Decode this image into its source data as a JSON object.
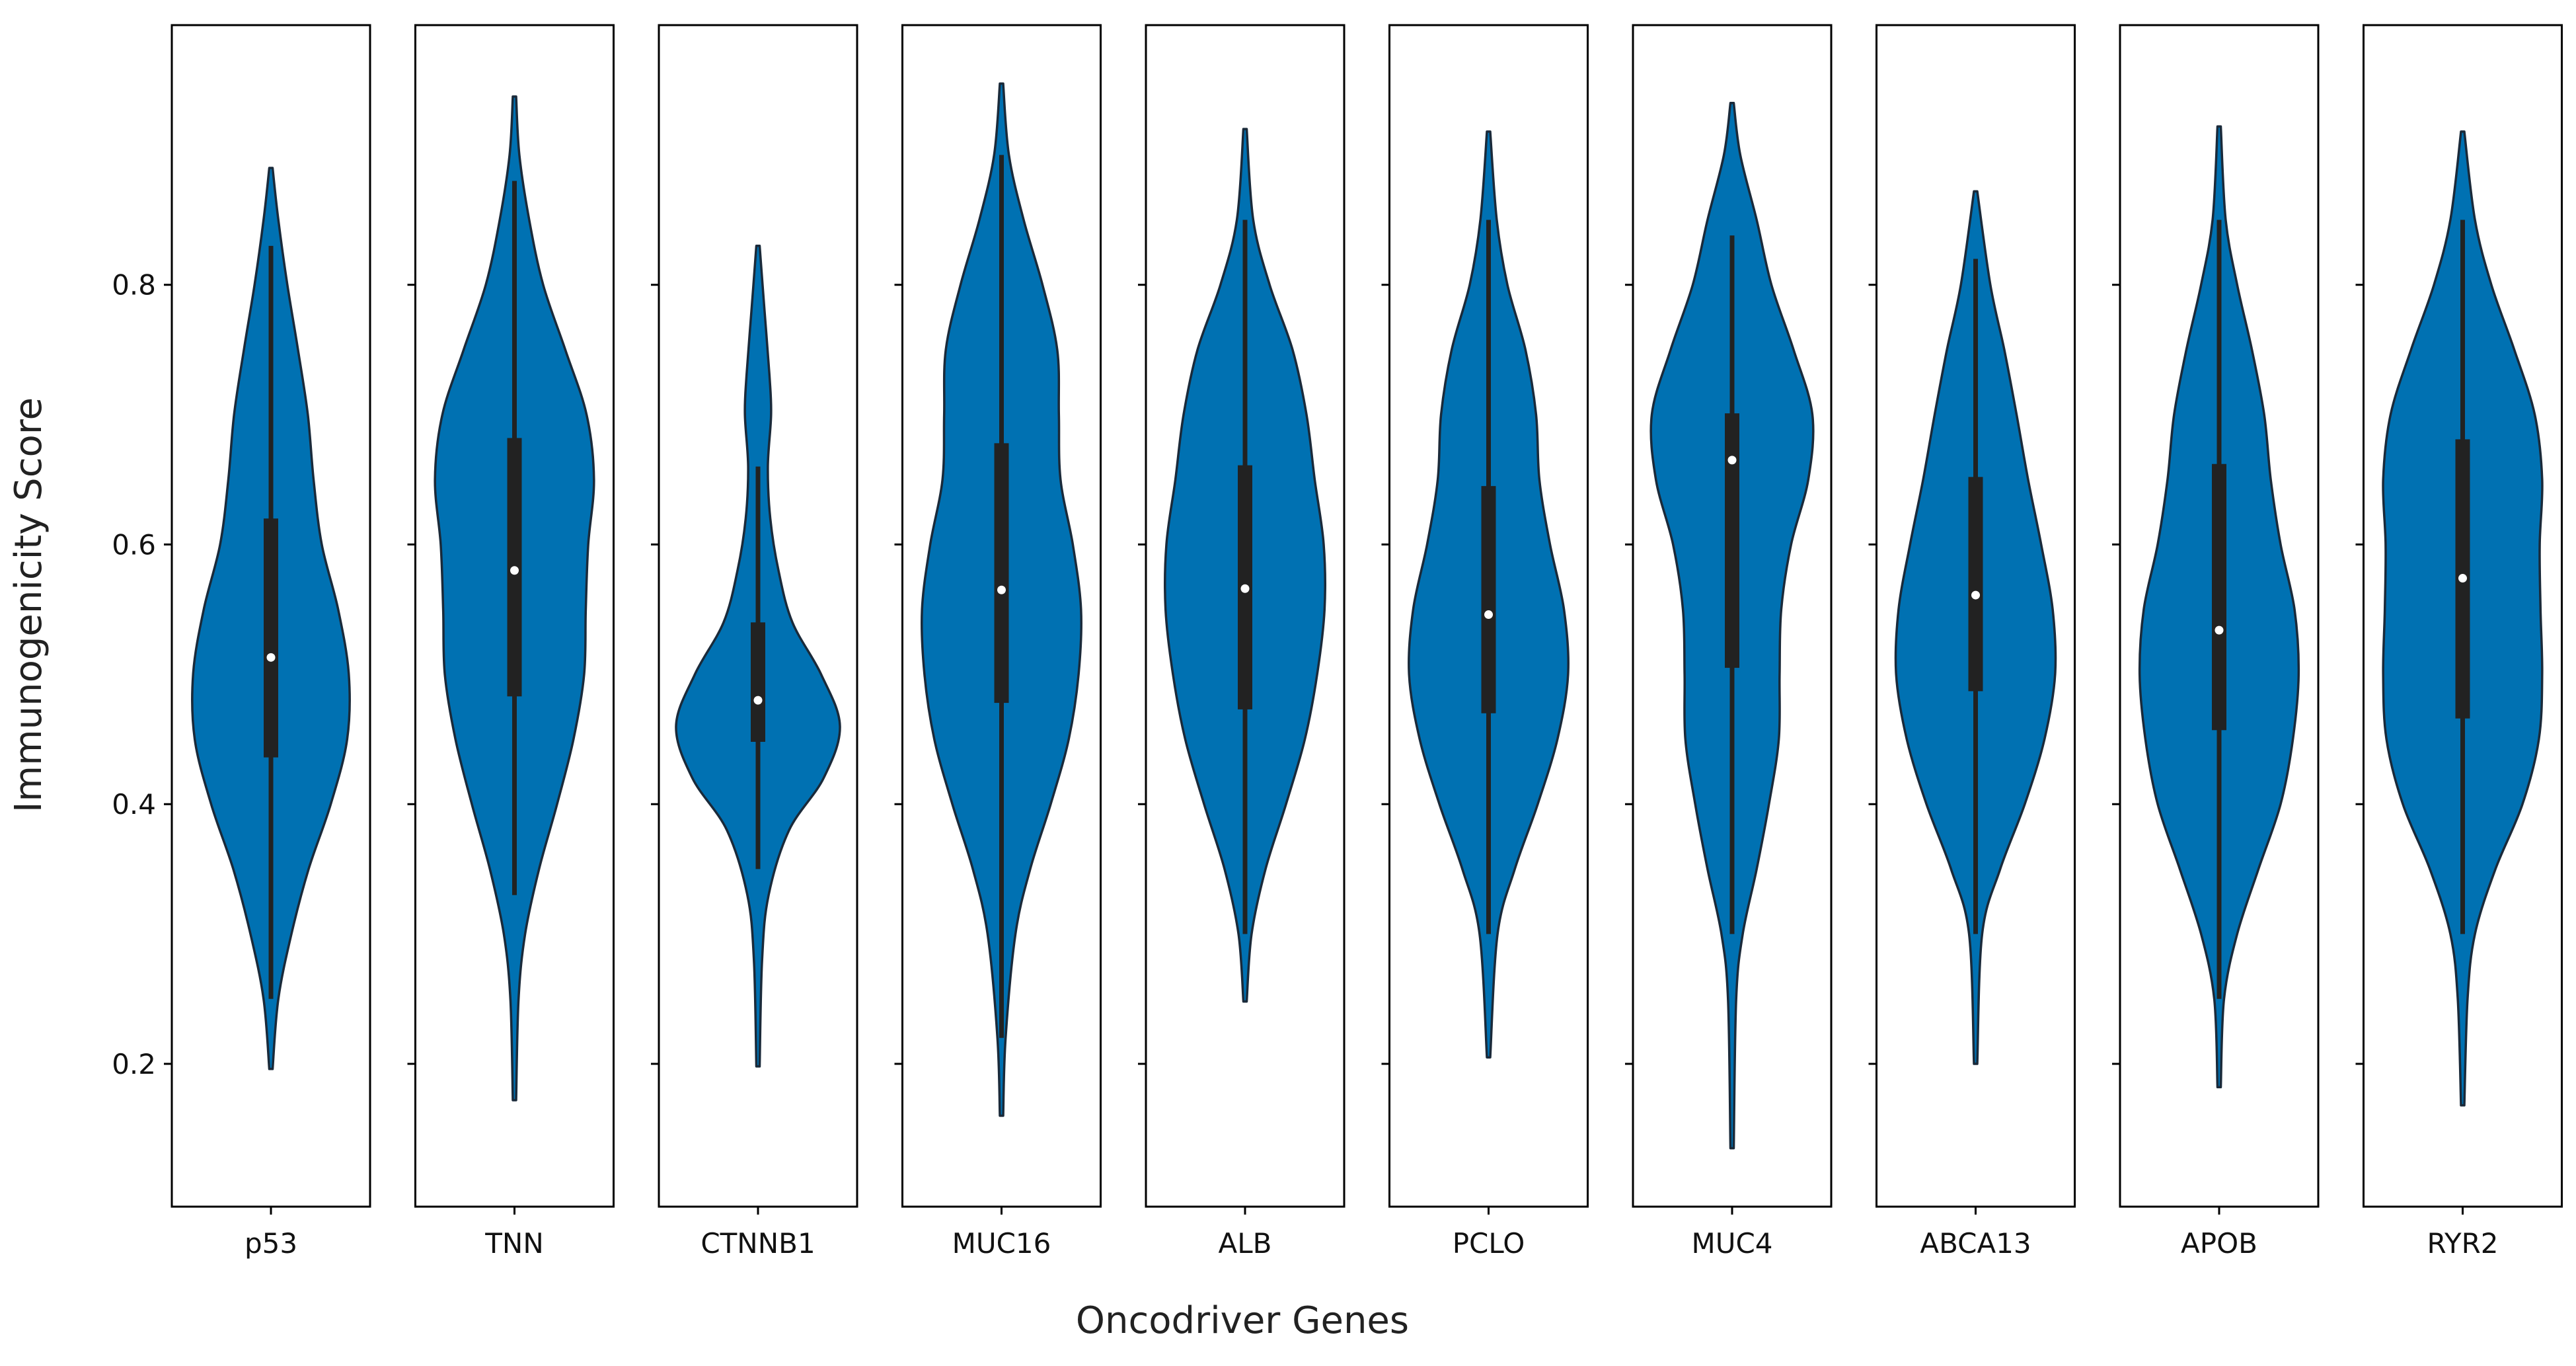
{
  "chart_data": {
    "type": "violin",
    "title": "",
    "xlabel": "Oncodriver Genes",
    "ylabel": "Immunogenicity Score",
    "ylim": [
      0.09,
      1.0
    ],
    "yticks": [
      0.2,
      0.4,
      0.6,
      0.8
    ],
    "colors": {
      "fill": "#0071b2",
      "box": "#222222",
      "median": "#ffffff",
      "frame": "#000000"
    },
    "series": [
      {
        "name": "p53",
        "min": 0.196,
        "max": 0.89,
        "q1": 0.436,
        "median": 0.513,
        "q3": 0.62,
        "wl": 0.25,
        "wh": 0.83,
        "density": [
          [
            0.196,
            0.02
          ],
          [
            0.25,
            0.09
          ],
          [
            0.3,
            0.25
          ],
          [
            0.35,
            0.46
          ],
          [
            0.4,
            0.73
          ],
          [
            0.45,
            0.93
          ],
          [
            0.5,
            0.95
          ],
          [
            0.55,
            0.82
          ],
          [
            0.6,
            0.62
          ],
          [
            0.65,
            0.52
          ],
          [
            0.7,
            0.45
          ],
          [
            0.75,
            0.33
          ],
          [
            0.8,
            0.2
          ],
          [
            0.85,
            0.09
          ],
          [
            0.89,
            0.02
          ]
        ]
      },
      {
        "name": "TNN",
        "min": 0.172,
        "max": 0.945,
        "q1": 0.483,
        "median": 0.58,
        "q3": 0.682,
        "wl": 0.33,
        "wh": 0.88,
        "density": [
          [
            0.172,
            0.02
          ],
          [
            0.25,
            0.05
          ],
          [
            0.3,
            0.13
          ],
          [
            0.35,
            0.3
          ],
          [
            0.4,
            0.52
          ],
          [
            0.45,
            0.72
          ],
          [
            0.5,
            0.85
          ],
          [
            0.55,
            0.87
          ],
          [
            0.6,
            0.9
          ],
          [
            0.65,
            0.97
          ],
          [
            0.7,
            0.88
          ],
          [
            0.75,
            0.62
          ],
          [
            0.8,
            0.35
          ],
          [
            0.85,
            0.18
          ],
          [
            0.9,
            0.06
          ],
          [
            0.945,
            0.02
          ]
        ]
      },
      {
        "name": "CTNNB1",
        "min": 0.198,
        "max": 0.83,
        "q1": 0.448,
        "median": 0.48,
        "q3": 0.54,
        "wl": 0.35,
        "wh": 0.66,
        "density": [
          [
            0.198,
            0.02
          ],
          [
            0.28,
            0.05
          ],
          [
            0.33,
            0.13
          ],
          [
            0.38,
            0.38
          ],
          [
            0.42,
            0.8
          ],
          [
            0.46,
            1.0
          ],
          [
            0.5,
            0.77
          ],
          [
            0.54,
            0.42
          ],
          [
            0.58,
            0.25
          ],
          [
            0.62,
            0.15
          ],
          [
            0.66,
            0.12
          ],
          [
            0.7,
            0.16
          ],
          [
            0.73,
            0.14
          ],
          [
            0.78,
            0.08
          ],
          [
            0.83,
            0.02
          ]
        ]
      },
      {
        "name": "MUC16",
        "min": 0.16,
        "max": 0.955,
        "q1": 0.478,
        "median": 0.565,
        "q3": 0.678,
        "wl": 0.22,
        "wh": 0.9,
        "density": [
          [
            0.16,
            0.02
          ],
          [
            0.22,
            0.05
          ],
          [
            0.3,
            0.17
          ],
          [
            0.35,
            0.35
          ],
          [
            0.4,
            0.6
          ],
          [
            0.45,
            0.82
          ],
          [
            0.5,
            0.94
          ],
          [
            0.55,
            0.97
          ],
          [
            0.6,
            0.87
          ],
          [
            0.65,
            0.72
          ],
          [
            0.7,
            0.7
          ],
          [
            0.75,
            0.68
          ],
          [
            0.8,
            0.5
          ],
          [
            0.85,
            0.27
          ],
          [
            0.9,
            0.09
          ],
          [
            0.955,
            0.02
          ]
        ]
      },
      {
        "name": "ALB",
        "min": 0.248,
        "max": 0.92,
        "q1": 0.473,
        "median": 0.566,
        "q3": 0.661,
        "wl": 0.3,
        "wh": 0.85,
        "density": [
          [
            0.248,
            0.02
          ],
          [
            0.3,
            0.08
          ],
          [
            0.35,
            0.25
          ],
          [
            0.4,
            0.5
          ],
          [
            0.45,
            0.73
          ],
          [
            0.5,
            0.88
          ],
          [
            0.55,
            0.97
          ],
          [
            0.6,
            0.96
          ],
          [
            0.65,
            0.85
          ],
          [
            0.7,
            0.75
          ],
          [
            0.75,
            0.58
          ],
          [
            0.8,
            0.3
          ],
          [
            0.85,
            0.1
          ],
          [
            0.92,
            0.02
          ]
        ]
      },
      {
        "name": "PCLO",
        "min": 0.205,
        "max": 0.918,
        "q1": 0.47,
        "median": 0.546,
        "q3": 0.645,
        "wl": 0.3,
        "wh": 0.85,
        "density": [
          [
            0.205,
            0.02
          ],
          [
            0.3,
            0.11
          ],
          [
            0.35,
            0.32
          ],
          [
            0.4,
            0.6
          ],
          [
            0.45,
            0.84
          ],
          [
            0.5,
            0.97
          ],
          [
            0.55,
            0.92
          ],
          [
            0.6,
            0.75
          ],
          [
            0.65,
            0.62
          ],
          [
            0.7,
            0.58
          ],
          [
            0.75,
            0.45
          ],
          [
            0.8,
            0.23
          ],
          [
            0.85,
            0.1
          ],
          [
            0.918,
            0.02
          ]
        ]
      },
      {
        "name": "MUC4",
        "min": 0.135,
        "max": 0.94,
        "q1": 0.505,
        "median": 0.665,
        "q3": 0.701,
        "wl": 0.3,
        "wh": 0.838,
        "density": [
          [
            0.135,
            0.02
          ],
          [
            0.25,
            0.05
          ],
          [
            0.3,
            0.13
          ],
          [
            0.35,
            0.3
          ],
          [
            0.4,
            0.45
          ],
          [
            0.45,
            0.57
          ],
          [
            0.5,
            0.58
          ],
          [
            0.55,
            0.6
          ],
          [
            0.6,
            0.72
          ],
          [
            0.65,
            0.93
          ],
          [
            0.7,
            0.98
          ],
          [
            0.75,
            0.75
          ],
          [
            0.8,
            0.48
          ],
          [
            0.85,
            0.3
          ],
          [
            0.9,
            0.1
          ],
          [
            0.94,
            0.02
          ]
        ]
      },
      {
        "name": "ABCA13",
        "min": 0.2,
        "max": 0.872,
        "q1": 0.487,
        "median": 0.561,
        "q3": 0.652,
        "wl": 0.3,
        "wh": 0.82,
        "density": [
          [
            0.2,
            0.02
          ],
          [
            0.3,
            0.08
          ],
          [
            0.35,
            0.3
          ],
          [
            0.4,
            0.6
          ],
          [
            0.45,
            0.84
          ],
          [
            0.5,
            0.97
          ],
          [
            0.55,
            0.94
          ],
          [
            0.6,
            0.8
          ],
          [
            0.65,
            0.64
          ],
          [
            0.7,
            0.5
          ],
          [
            0.75,
            0.35
          ],
          [
            0.8,
            0.18
          ],
          [
            0.872,
            0.02
          ]
        ]
      },
      {
        "name": "APOB",
        "min": 0.182,
        "max": 0.922,
        "q1": 0.457,
        "median": 0.534,
        "q3": 0.662,
        "wl": 0.25,
        "wh": 0.85,
        "density": [
          [
            0.182,
            0.02
          ],
          [
            0.25,
            0.06
          ],
          [
            0.3,
            0.22
          ],
          [
            0.35,
            0.48
          ],
          [
            0.4,
            0.75
          ],
          [
            0.45,
            0.9
          ],
          [
            0.5,
            0.97
          ],
          [
            0.55,
            0.92
          ],
          [
            0.6,
            0.75
          ],
          [
            0.65,
            0.63
          ],
          [
            0.7,
            0.55
          ],
          [
            0.75,
            0.4
          ],
          [
            0.8,
            0.22
          ],
          [
            0.85,
            0.08
          ],
          [
            0.922,
            0.02
          ]
        ]
      },
      {
        "name": "RYR2",
        "min": 0.168,
        "max": 0.918,
        "q1": 0.466,
        "median": 0.574,
        "q3": 0.681,
        "wl": 0.3,
        "wh": 0.85,
        "density": [
          [
            0.168,
            0.02
          ],
          [
            0.25,
            0.06
          ],
          [
            0.3,
            0.15
          ],
          [
            0.35,
            0.4
          ],
          [
            0.4,
            0.73
          ],
          [
            0.45,
            0.93
          ],
          [
            0.5,
            0.97
          ],
          [
            0.55,
            0.95
          ],
          [
            0.6,
            0.94
          ],
          [
            0.65,
            0.97
          ],
          [
            0.7,
            0.88
          ],
          [
            0.75,
            0.63
          ],
          [
            0.8,
            0.35
          ],
          [
            0.85,
            0.15
          ],
          [
            0.918,
            0.02
          ]
        ]
      }
    ]
  }
}
